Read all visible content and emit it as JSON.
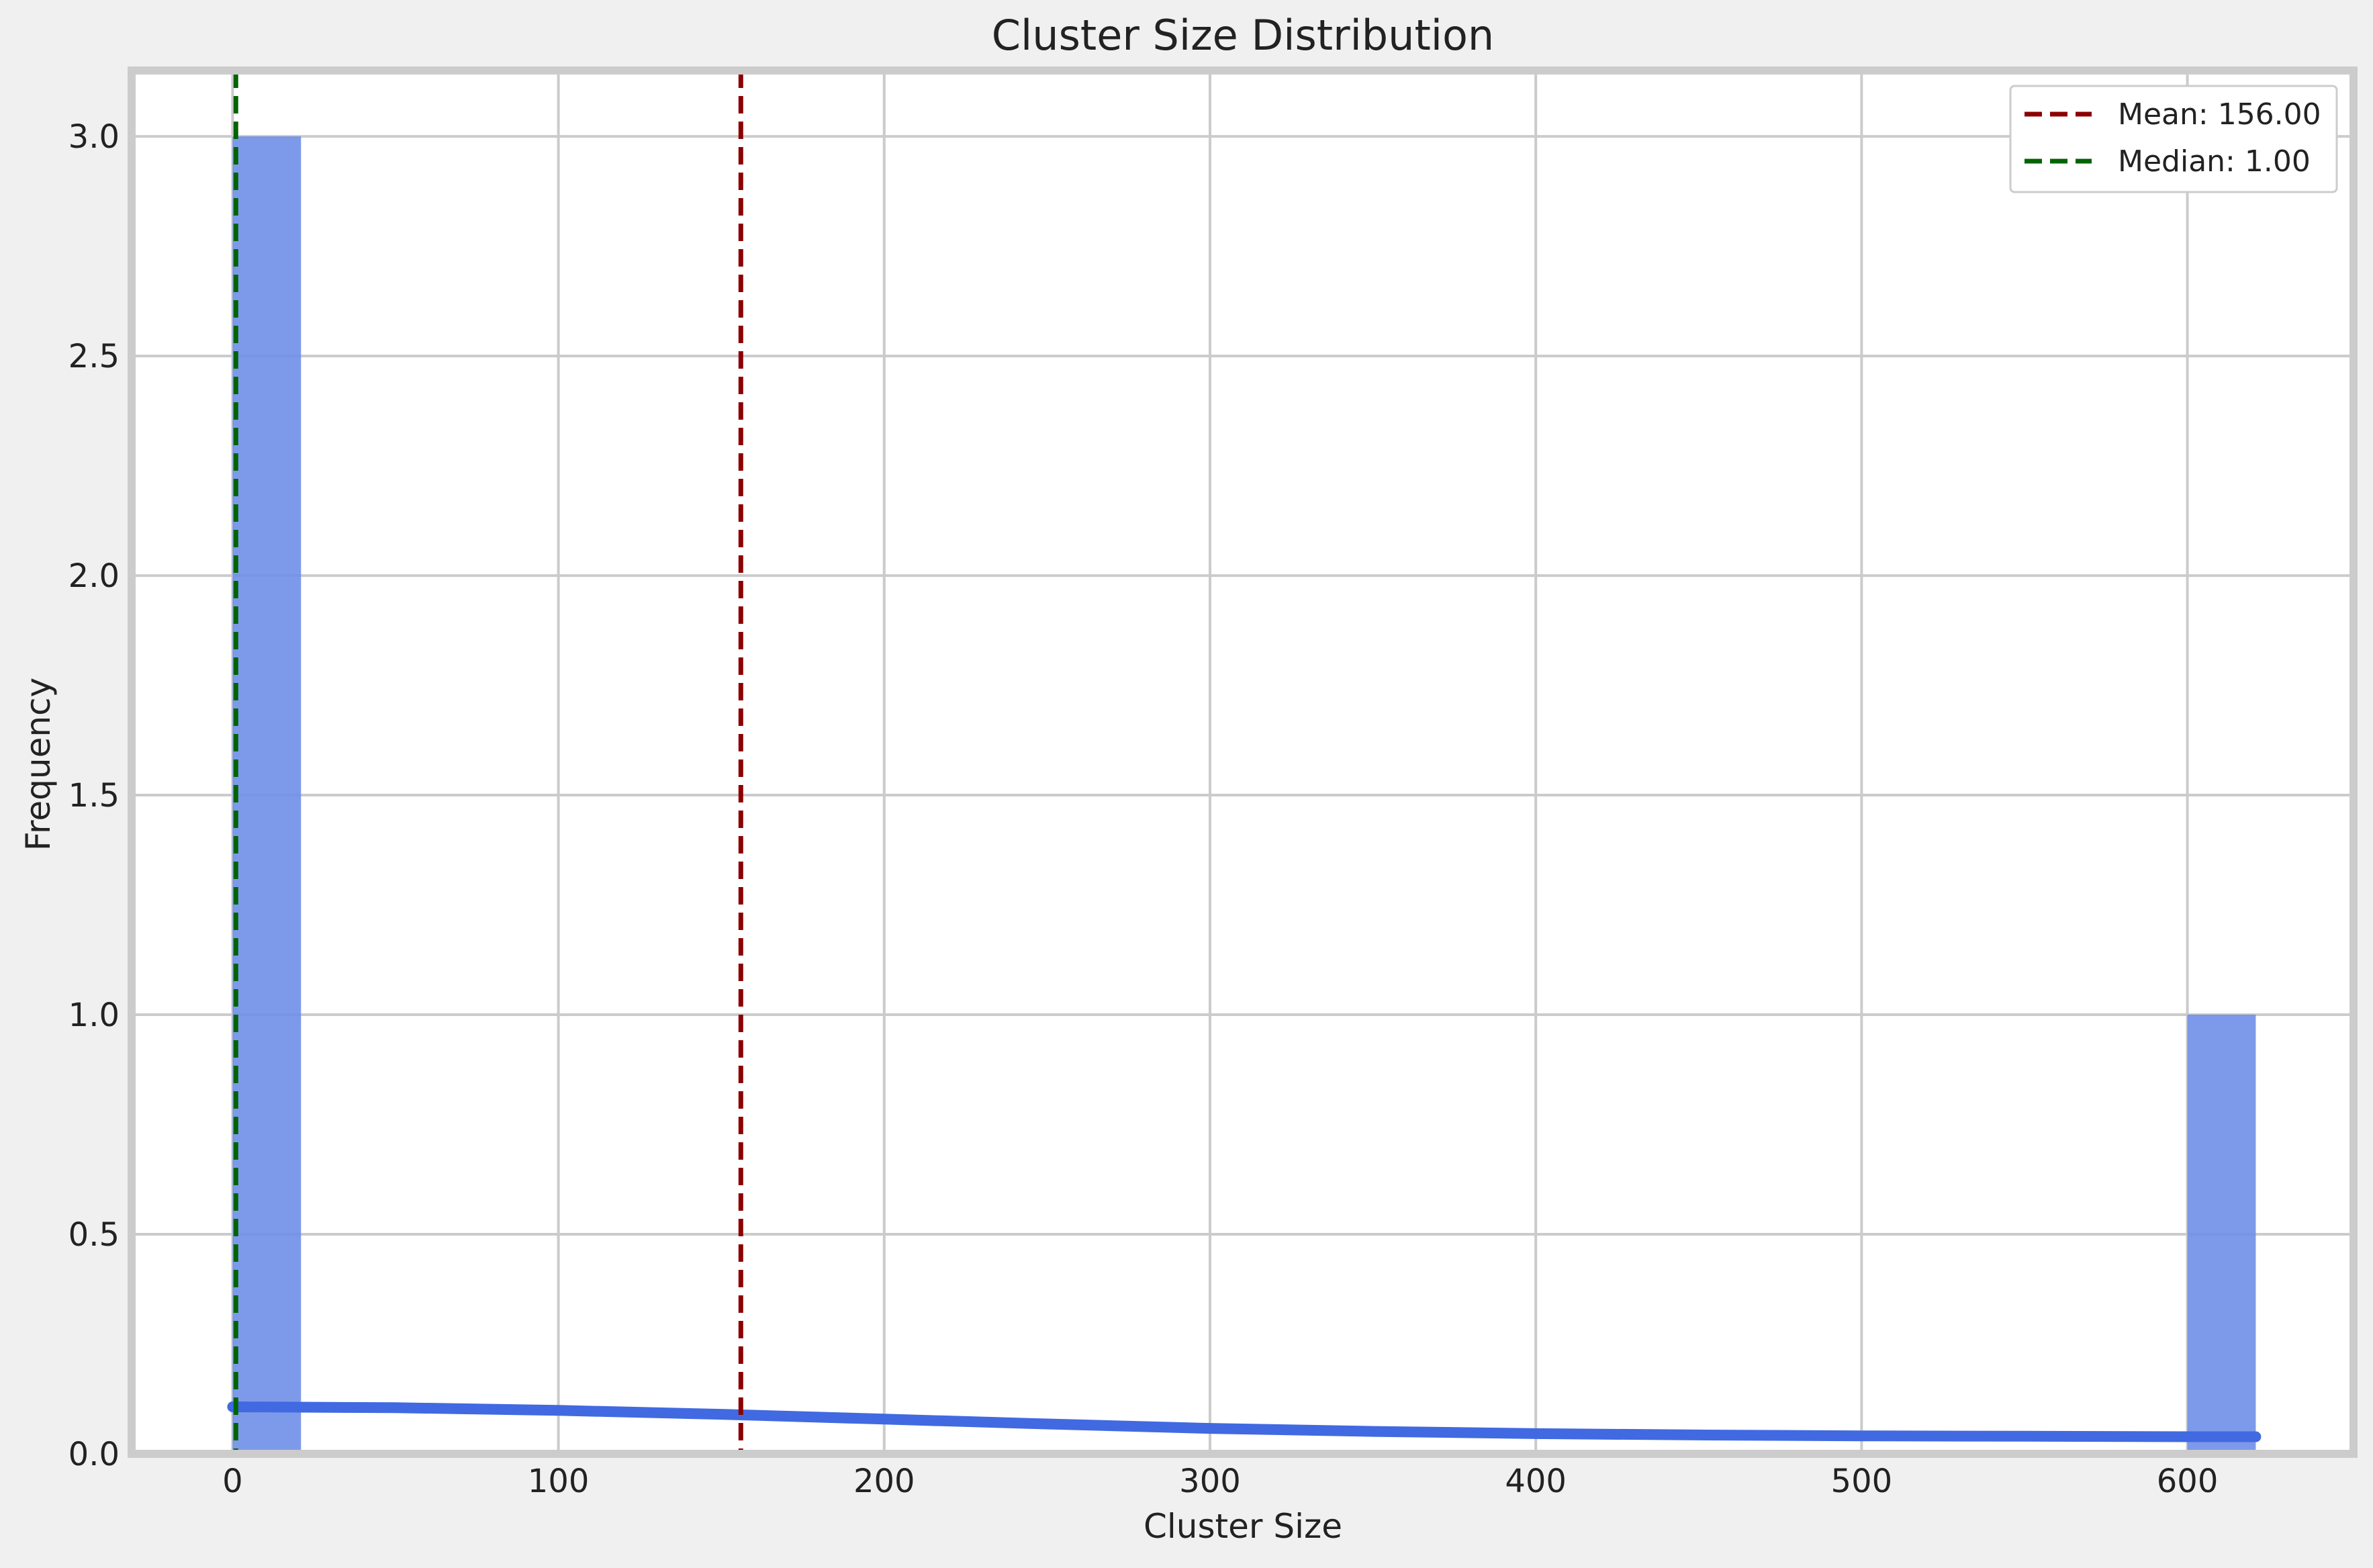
{
  "chart_data": {
    "type": "bar",
    "title": "Cluster Size Distribution",
    "xlabel": "Cluster Size",
    "ylabel": "Frequency",
    "xlim": [
      -31,
      651
    ],
    "ylim": [
      0,
      3.15
    ],
    "xticks": [
      0,
      100,
      200,
      300,
      400,
      500,
      600
    ],
    "yticks": [
      0.0,
      0.5,
      1.0,
      1.5,
      2.0,
      2.5,
      3.0
    ],
    "ytick_labels": [
      "0.0",
      "0.5",
      "1.0",
      "1.5",
      "2.0",
      "2.5",
      "3.0"
    ],
    "grid": true,
    "histogram": {
      "bins": [
        {
          "x0": 0,
          "x1": 21,
          "count": 3
        },
        {
          "x0": 600,
          "x1": 621,
          "count": 1
        }
      ],
      "color": "#6f8fe8"
    },
    "kde": {
      "color": "#4169e1",
      "x": [
        0,
        50,
        100,
        150,
        200,
        250,
        300,
        350,
        400,
        450,
        500,
        550,
        600,
        621
      ],
      "y": [
        0.107,
        0.105,
        0.099,
        0.09,
        0.079,
        0.068,
        0.058,
        0.051,
        0.046,
        0.043,
        0.041,
        0.04,
        0.039,
        0.039
      ]
    },
    "reference_lines": [
      {
        "name": "Mean: 156.00",
        "x": 156,
        "color": "#8b0000"
      },
      {
        "name": "Median: 1.00",
        "x": 1,
        "color": "#006400"
      }
    ],
    "legend_position": "top-right"
  }
}
